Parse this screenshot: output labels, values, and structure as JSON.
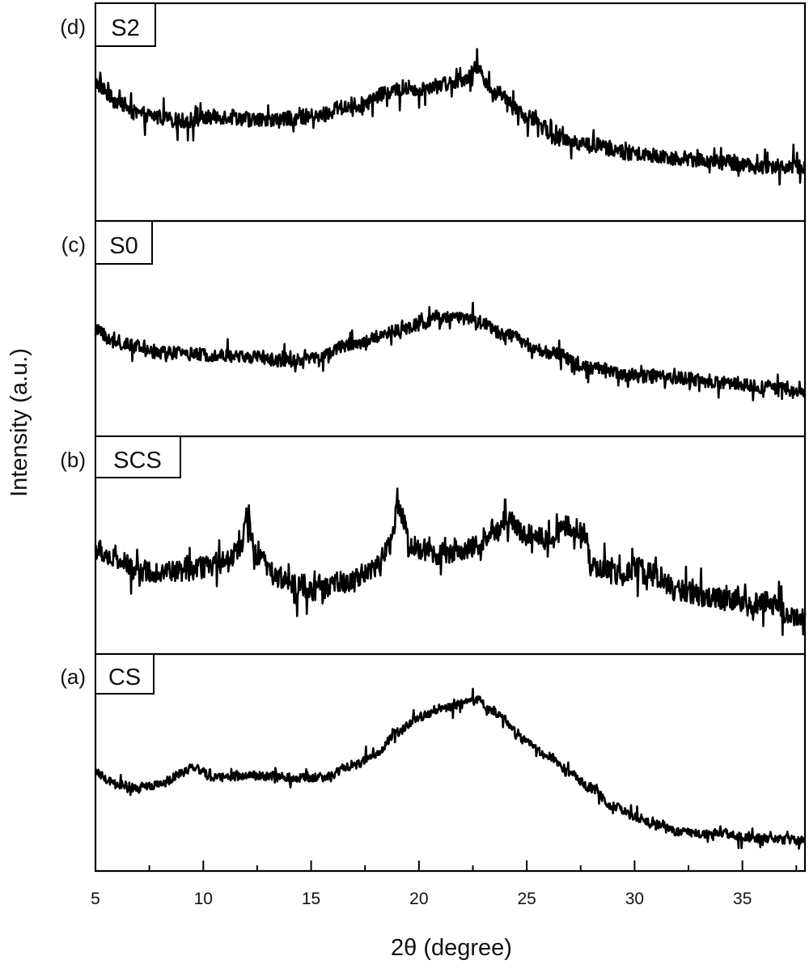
{
  "figure": {
    "xlabel": "2θ (degree)",
    "ylabel": "Intensity (a.u.)",
    "xticks": [
      5,
      10,
      15,
      20,
      25,
      30,
      35
    ],
    "xtick_labels": [
      "5",
      "10",
      "15",
      "20",
      "25",
      "30",
      "35"
    ],
    "minor_xticks": [
      7.5,
      12.5,
      17.5,
      22.5,
      27.5,
      32.5,
      37.5
    ],
    "xlim": [
      5,
      37.9
    ],
    "line_color": "#000000",
    "panels": [
      {
        "id": "d",
        "letter": "(d)",
        "sample": "S2"
      },
      {
        "id": "c",
        "letter": "(c)",
        "sample": "S0"
      },
      {
        "id": "b",
        "letter": "(b)",
        "sample": "SCS"
      },
      {
        "id": "a",
        "letter": "(a)",
        "sample": "CS"
      }
    ]
  },
  "chart_data": {
    "type": "line",
    "title": "",
    "xlabel": "2θ (degree)",
    "ylabel": "Intensity (a.u.)",
    "xlim": [
      5,
      37.9
    ],
    "grid": false,
    "layout": "4 vertically stacked panels sharing x-axis, y-axis unlabeled (arbitrary units, normalized 0-1 per panel)",
    "legend": "panel labels boxed at upper-left of each panel",
    "series": [
      {
        "name": "S2",
        "panel": "(d)",
        "noise": 0.035,
        "x": [
          5,
          6,
          7,
          9,
          11,
          13,
          15,
          17,
          19,
          20,
          21,
          22,
          22.7,
          23.5,
          25,
          26.5,
          28,
          30,
          32,
          34,
          36,
          37.9
        ],
        "values": [
          0.63,
          0.55,
          0.49,
          0.46,
          0.48,
          0.46,
          0.48,
          0.53,
          0.6,
          0.61,
          0.63,
          0.65,
          0.7,
          0.59,
          0.48,
          0.38,
          0.35,
          0.31,
          0.29,
          0.27,
          0.25,
          0.25
        ],
        "spikes": [
          {
            "x": 22.7,
            "value": 0.79
          },
          {
            "x": 20.0,
            "value": 0.52
          }
        ]
      },
      {
        "name": "S0",
        "panel": "(c)",
        "noise": 0.03,
        "x": [
          5,
          6,
          8,
          10,
          12,
          14,
          15,
          17,
          19,
          20,
          21,
          22,
          23,
          24,
          26,
          28,
          30,
          32,
          34,
          36,
          37.9
        ],
        "values": [
          0.49,
          0.43,
          0.39,
          0.38,
          0.37,
          0.35,
          0.36,
          0.43,
          0.49,
          0.52,
          0.55,
          0.55,
          0.52,
          0.47,
          0.39,
          0.32,
          0.28,
          0.27,
          0.25,
          0.23,
          0.21
        ],
        "spikes": [
          {
            "x": 22.5,
            "value": 0.62
          }
        ]
      },
      {
        "name": "SCS",
        "panel": "(b)",
        "noise": 0.05,
        "x": [
          5,
          6,
          7,
          9,
          11,
          11.7,
          12,
          12.5,
          13.5,
          15,
          16.5,
          18,
          18.7,
          19,
          19.7,
          21,
          22.5,
          23.5,
          24,
          25,
          26,
          27,
          27.7,
          28,
          29.5,
          30,
          31,
          32,
          34,
          36,
          37.9
        ],
        "values": [
          0.48,
          0.43,
          0.38,
          0.38,
          0.42,
          0.48,
          0.61,
          0.44,
          0.35,
          0.29,
          0.33,
          0.4,
          0.51,
          0.68,
          0.49,
          0.46,
          0.49,
          0.57,
          0.62,
          0.55,
          0.53,
          0.59,
          0.55,
          0.4,
          0.36,
          0.4,
          0.36,
          0.29,
          0.25,
          0.23,
          0.16
        ],
        "spikes": [
          {
            "x": 12.0,
            "value": 0.67
          },
          {
            "x": 19.0,
            "value": 0.76
          },
          {
            "x": 24.0,
            "value": 0.71
          }
        ]
      },
      {
        "name": "CS",
        "panel": "(a)",
        "noise": 0.02,
        "x": [
          5,
          6,
          7,
          8,
          9,
          9.5,
          10.5,
          12,
          14,
          15.5,
          17,
          18,
          19,
          20,
          21,
          22,
          22.7,
          23.5,
          25,
          26,
          27,
          28,
          29,
          30,
          31,
          32,
          34,
          36,
          37.9
        ],
        "values": [
          0.45,
          0.4,
          0.38,
          0.4,
          0.45,
          0.48,
          0.43,
          0.44,
          0.43,
          0.43,
          0.49,
          0.54,
          0.64,
          0.71,
          0.75,
          0.77,
          0.79,
          0.73,
          0.6,
          0.53,
          0.45,
          0.38,
          0.3,
          0.25,
          0.21,
          0.18,
          0.17,
          0.15,
          0.14
        ],
        "spikes": [
          {
            "x": 22.5,
            "value": 0.84
          }
        ]
      }
    ]
  }
}
